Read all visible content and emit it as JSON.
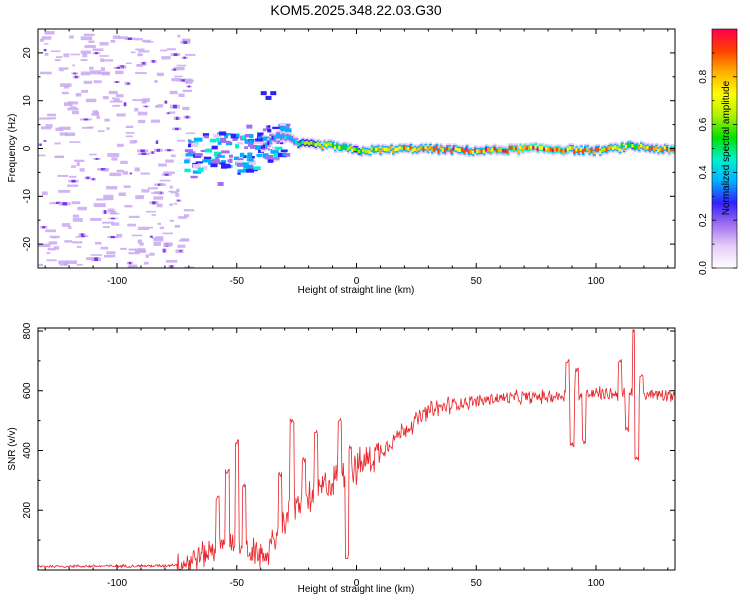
{
  "title": "KOM5.2025.348.22.03.G30",
  "colors": {
    "snr_line": "#e8242a",
    "speck": "#c9a8f0",
    "speck_dark": "#7a36e8",
    "background": "#ffffff"
  },
  "chart_data": [
    {
      "type": "heatmap",
      "name": "spectrogram",
      "xlabel": "Height of straight line (km)",
      "ylabel": "Frequency (Hz)",
      "xlim": [
        -133,
        133
      ],
      "ylim": [
        -25,
        25
      ],
      "xticks": [
        -100,
        -50,
        0,
        50,
        100
      ],
      "yticks": [
        -20,
        -10,
        0,
        10,
        20
      ],
      "colorbar": {
        "label": "Normalized spectral amplitude",
        "range": [
          0,
          1
        ],
        "ticks": [
          "0.0",
          "0.2",
          "0.4",
          "0.6",
          "0.8"
        ],
        "tick_values": [
          0.0,
          0.2,
          0.4,
          0.6,
          0.8
        ],
        "colors": [
          "#ffffff",
          "#e6cdf8",
          "#a070f0",
          "#3020ff",
          "#00b0ff",
          "#00f0d0",
          "#00e000",
          "#b0f000",
          "#ffff00",
          "#ffb000",
          "#ff4000",
          "#ff0050"
        ]
      },
      "carrier_track": [
        {
          "x": -70,
          "y": -2
        },
        {
          "x": -60,
          "y": 1
        },
        {
          "x": -50,
          "y": -1
        },
        {
          "x": -40,
          "y": 0
        },
        {
          "x": -33,
          "y": 3
        },
        {
          "x": -25,
          "y": 1
        },
        {
          "x": -10,
          "y": 0.5
        },
        {
          "x": 0,
          "y": -0.5
        },
        {
          "x": 25,
          "y": 0
        },
        {
          "x": 50,
          "y": -0.5
        },
        {
          "x": 75,
          "y": 0
        },
        {
          "x": 100,
          "y": -0.5
        },
        {
          "x": 115,
          "y": 0.5
        },
        {
          "x": 133,
          "y": -0.5
        }
      ],
      "carrier_amplitude": [
        {
          "x": -70,
          "v": 0.15
        },
        {
          "x": -40,
          "v": 0.3
        },
        {
          "x": -30,
          "v": 0.4
        },
        {
          "x": -15,
          "v": 0.75
        },
        {
          "x": 0,
          "v": 0.7
        },
        {
          "x": 20,
          "v": 0.85
        },
        {
          "x": 50,
          "v": 0.9
        },
        {
          "x": 80,
          "v": 0.95
        },
        {
          "x": 100,
          "v": 0.85
        },
        {
          "x": 115,
          "v": 0.7
        },
        {
          "x": 133,
          "v": 0.95
        }
      ]
    },
    {
      "type": "line",
      "name": "snr",
      "xlabel": "Height of straight line (km)",
      "ylabel": "SNR (v/v)",
      "xlim": [
        -133,
        133
      ],
      "ylim": [
        0,
        810
      ],
      "xticks": [
        -100,
        -50,
        0,
        50,
        100
      ],
      "yticks": [
        200,
        400,
        600,
        800
      ],
      "series": [
        {
          "name": "SNR",
          "trend": [
            {
              "x": -133,
              "y": 12
            },
            {
              "x": -80,
              "y": 14
            },
            {
              "x": -72,
              "y": 22
            },
            {
              "x": -62,
              "y": 60
            },
            {
              "x": -52,
              "y": 100
            },
            {
              "x": -44,
              "y": 60
            },
            {
              "x": -38,
              "y": 45
            },
            {
              "x": -30,
              "y": 170
            },
            {
              "x": -20,
              "y": 240
            },
            {
              "x": -10,
              "y": 300
            },
            {
              "x": 0,
              "y": 340
            },
            {
              "x": 10,
              "y": 400
            },
            {
              "x": 20,
              "y": 470
            },
            {
              "x": 30,
              "y": 530
            },
            {
              "x": 40,
              "y": 555
            },
            {
              "x": 60,
              "y": 575
            },
            {
              "x": 80,
              "y": 580
            },
            {
              "x": 100,
              "y": 590
            },
            {
              "x": 133,
              "y": 590
            }
          ],
          "spikes": [
            {
              "x": -50,
              "y": 430
            },
            {
              "x": -54,
              "y": 330
            },
            {
              "x": -58,
              "y": 240
            },
            {
              "x": -47,
              "y": 280
            },
            {
              "x": -32,
              "y": 320
            },
            {
              "x": -27,
              "y": 500
            },
            {
              "x": -22,
              "y": 370
            },
            {
              "x": -17,
              "y": 460
            },
            {
              "x": -7,
              "y": 500
            },
            {
              "x": -3,
              "y": 410
            },
            {
              "x": -4,
              "y": 45
            },
            {
              "x": 88,
              "y": 700
            },
            {
              "x": 90,
              "y": 420
            },
            {
              "x": 92,
              "y": 670
            },
            {
              "x": 95,
              "y": 430
            },
            {
              "x": 110,
              "y": 700
            },
            {
              "x": 113,
              "y": 470
            },
            {
              "x": 116,
              "y": 800
            },
            {
              "x": 117,
              "y": 370
            },
            {
              "x": 119,
              "y": 650
            }
          ]
        }
      ]
    }
  ]
}
